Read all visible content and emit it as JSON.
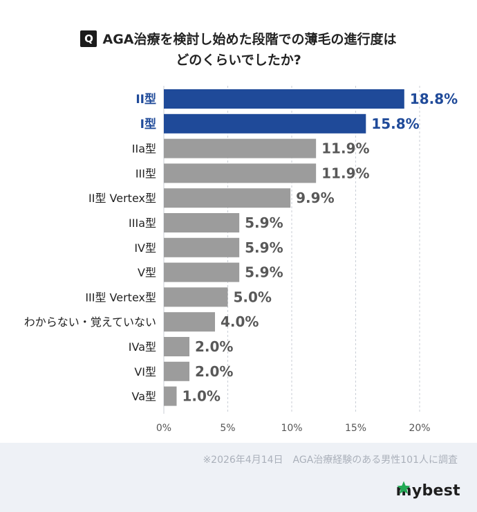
{
  "header": {
    "badge": "Q",
    "title_line1": "AGA治療を検討し始めた段階での薄毛の進行度は",
    "title_line2": "どのくらいでしたか?"
  },
  "chart_data": {
    "type": "bar",
    "orientation": "horizontal",
    "categories": [
      "II型",
      "I型",
      "IIa型",
      "III型",
      "II型 Vertex型",
      "IIIa型",
      "IV型",
      "V型",
      "III型 Vertex型",
      "わからない・覚えていない",
      "IVa型",
      "VI型",
      "Va型"
    ],
    "values": [
      18.8,
      15.8,
      11.9,
      11.9,
      9.9,
      5.9,
      5.9,
      5.9,
      5.0,
      4.0,
      2.0,
      2.0,
      1.0
    ],
    "value_labels": [
      "18.8%",
      "15.8%",
      "11.9%",
      "11.9%",
      "9.9%",
      "5.9%",
      "5.9%",
      "5.9%",
      "5.0%",
      "4.0%",
      "2.0%",
      "2.0%",
      "1.0%"
    ],
    "highlighted": [
      true,
      true,
      false,
      false,
      false,
      false,
      false,
      false,
      false,
      false,
      false,
      false,
      false
    ],
    "xlim": [
      0,
      20
    ],
    "x_ticks": [
      0,
      5,
      10,
      15,
      20
    ],
    "x_tick_labels": [
      "0%",
      "5%",
      "10%",
      "15%",
      "20%"
    ],
    "grid": "vertical dashed",
    "colors": {
      "highlight": "#1f4a99",
      "default": "#9c9c9c",
      "highlight_text": "#1f4a99",
      "default_text": "#585858",
      "category_text": "#222222",
      "grid": "#c9ced6"
    }
  },
  "footer": {
    "note": "※2026年4月14日　AGA治療経験のある男性101人に調査",
    "brand": "mybest",
    "brand_icon": "star-icon",
    "brand_color": "#22aa55"
  }
}
